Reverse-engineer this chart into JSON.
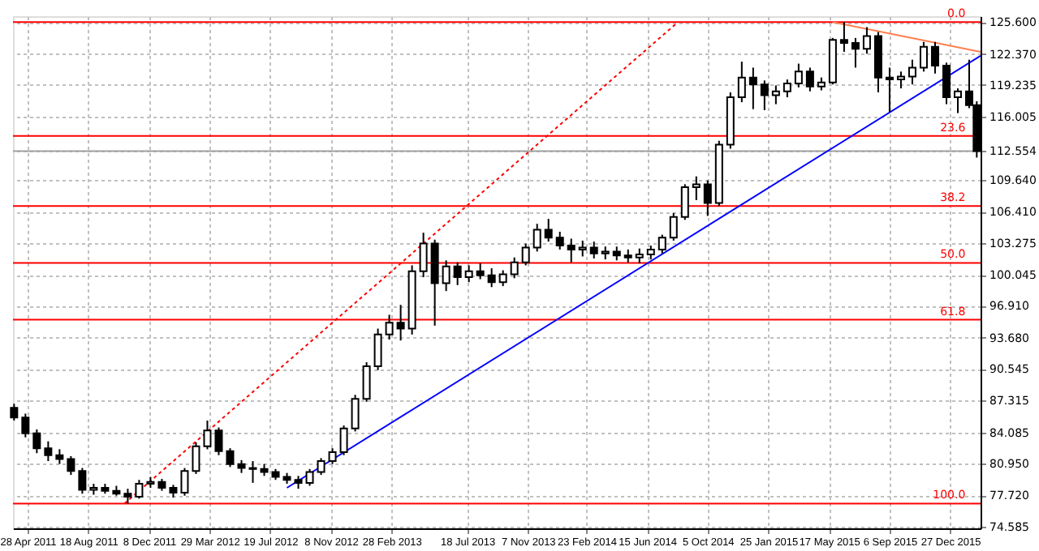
{
  "chart_data": {
    "type": "candlestick",
    "xlim": [
      "2011-04-01",
      "2016-02-21"
    ],
    "xticks": [
      {
        "value": "2011-04-28",
        "label": "28 Apr 2011"
      },
      {
        "value": "2011-08-18",
        "label": "18 Aug 2011"
      },
      {
        "value": "2011-12-08",
        "label": "8 Dec 2011"
      },
      {
        "value": "2012-03-29",
        "label": "29 Mar 2012"
      },
      {
        "value": "2012-07-19",
        "label": "19 Jul 2012"
      },
      {
        "value": "2012-11-08",
        "label": "8 Nov 2012"
      },
      {
        "value": "2013-02-28",
        "label": "28 Feb 2013"
      },
      {
        "value": "2013-07-18",
        "label": "18 Jul 2013"
      },
      {
        "value": "2013-11-07",
        "label": "7 Nov 2013"
      },
      {
        "value": "2014-02-23",
        "label": "23 Feb 2014"
      },
      {
        "value": "2014-06-15",
        "label": "15 Jun 2014"
      },
      {
        "value": "2014-10-05",
        "label": "5 Oct 2014"
      },
      {
        "value": "2015-01-25",
        "label": "25 Jan 2015"
      },
      {
        "value": "2015-05-17",
        "label": "17 May 2015"
      },
      {
        "value": "2015-09-06",
        "label": "6 Sep 2015"
      },
      {
        "value": "2015-12-27",
        "label": "27 Dec 2015"
      }
    ],
    "ylim": [
      74.4,
      126.2
    ],
    "yticks": [
      {
        "value": 125.6,
        "label": "125.600"
      },
      {
        "value": 122.37,
        "label": "122.370"
      },
      {
        "value": 119.235,
        "label": "119.235"
      },
      {
        "value": 116.005,
        "label": "116.005"
      },
      {
        "value": 112.554,
        "label": "112.554"
      },
      {
        "value": 109.64,
        "label": "109.640"
      },
      {
        "value": 106.41,
        "label": "106.410"
      },
      {
        "value": 103.275,
        "label": "103.275"
      },
      {
        "value": 100.045,
        "label": "100.045"
      },
      {
        "value": 96.91,
        "label": "96.910"
      },
      {
        "value": 93.68,
        "label": "93.680"
      },
      {
        "value": 90.545,
        "label": "90.545"
      },
      {
        "value": 87.315,
        "label": "87.315"
      },
      {
        "value": 84.085,
        "label": "84.085"
      },
      {
        "value": 80.95,
        "label": "80.950"
      },
      {
        "value": 77.72,
        "label": "77.720"
      },
      {
        "value": 74.585,
        "label": "74.585"
      }
    ],
    "grid": true,
    "ref_lines": [
      {
        "axis": "y",
        "value": 125.6,
        "color": "#ff0000"
      },
      {
        "axis": "y",
        "value": 114.1,
        "color": "#ff0000"
      },
      {
        "axis": "y",
        "value": 107.0,
        "color": "#ff0000"
      },
      {
        "axis": "y",
        "value": 101.25,
        "color": "#ff0000"
      },
      {
        "axis": "y",
        "value": 95.5,
        "color": "#ff0000"
      },
      {
        "axis": "y",
        "value": 76.9,
        "color": "#ff0000"
      },
      {
        "axis": "y",
        "value": 112.554,
        "color": "#a0a0a0"
      }
    ],
    "annotations": [
      {
        "text": "0.0",
        "x": "2016-01-24",
        "y": 125.6
      },
      {
        "text": "23.6",
        "x": "2016-01-24",
        "y": 114.1
      },
      {
        "text": "38.2",
        "x": "2016-01-24",
        "y": 107.0
      },
      {
        "text": "50.0",
        "x": "2016-01-24",
        "y": 101.25
      },
      {
        "text": "61.8",
        "x": "2016-01-24",
        "y": 95.5
      },
      {
        "text": "100.0",
        "x": "2016-01-24",
        "y": 76.9
      }
    ],
    "series": [
      {
        "type": "candlestick",
        "color": "#000000",
        "x": [
          "2011-04-03",
          "2011-04-24",
          "2011-05-15",
          "2011-06-05",
          "2011-06-26",
          "2011-07-17",
          "2011-08-07",
          "2011-08-28",
          "2011-09-18",
          "2011-10-09",
          "2011-10-30",
          "2011-11-20",
          "2011-12-11",
          "2012-01-01",
          "2012-01-22",
          "2012-02-12",
          "2012-03-04",
          "2012-03-25",
          "2012-04-15",
          "2012-05-06",
          "2012-05-27",
          "2012-06-17",
          "2012-07-08",
          "2012-07-29",
          "2012-08-19",
          "2012-09-09",
          "2012-09-30",
          "2012-10-21",
          "2012-11-11",
          "2012-12-02",
          "2012-12-23",
          "2013-01-13",
          "2013-02-03",
          "2013-02-24",
          "2013-03-17",
          "2013-04-07",
          "2013-04-28",
          "2013-05-19",
          "2013-06-09",
          "2013-06-30",
          "2013-07-21",
          "2013-08-11",
          "2013-09-01",
          "2013-09-22",
          "2013-10-13",
          "2013-11-03",
          "2013-11-24",
          "2013-12-15",
          "2014-01-05",
          "2014-01-26",
          "2014-02-16",
          "2014-03-09",
          "2014-03-30",
          "2014-04-20",
          "2014-05-11",
          "2014-06-01",
          "2014-06-22",
          "2014-07-13",
          "2014-08-03",
          "2014-08-24",
          "2014-09-14",
          "2014-10-05",
          "2014-10-26",
          "2014-11-16",
          "2014-12-07",
          "2014-12-28",
          "2015-01-18",
          "2015-02-08",
          "2015-03-01",
          "2015-03-22",
          "2015-04-12",
          "2015-05-03",
          "2015-05-24",
          "2015-06-14",
          "2015-07-05",
          "2015-07-26",
          "2015-08-16",
          "2015-09-06",
          "2015-09-27",
          "2015-10-18",
          "2015-11-08",
          "2015-11-29",
          "2015-12-20",
          "2016-01-10",
          "2016-01-31",
          "2016-02-14"
        ],
        "ohlc": [
          [
            86.6,
            87.0,
            85.3,
            85.6
          ],
          [
            85.6,
            86.0,
            83.6,
            84.0
          ],
          [
            84.0,
            84.4,
            82.0,
            82.5
          ],
          [
            82.5,
            83.2,
            81.2,
            81.8
          ],
          [
            81.8,
            82.4,
            80.9,
            81.4
          ],
          [
            81.4,
            81.7,
            79.8,
            80.2
          ],
          [
            80.2,
            80.5,
            77.9,
            78.3
          ],
          [
            78.3,
            78.9,
            77.8,
            78.5
          ],
          [
            78.5,
            78.9,
            77.9,
            78.2
          ],
          [
            78.2,
            78.7,
            77.7,
            77.9
          ],
          [
            77.9,
            78.4,
            76.9,
            77.6
          ],
          [
            77.6,
            79.3,
            77.4,
            78.9
          ],
          [
            78.9,
            79.6,
            78.5,
            79.1
          ],
          [
            79.1,
            79.4,
            78.2,
            78.5
          ],
          [
            78.5,
            78.8,
            77.5,
            78.0
          ],
          [
            78.0,
            80.5,
            77.7,
            80.2
          ],
          [
            80.2,
            83.1,
            79.9,
            82.7
          ],
          [
            82.7,
            85.3,
            82.4,
            84.3
          ],
          [
            84.3,
            84.6,
            81.8,
            82.2
          ],
          [
            82.2,
            82.5,
            80.6,
            80.9
          ],
          [
            80.9,
            81.3,
            80.0,
            80.5
          ],
          [
            80.5,
            81.2,
            79.0,
            80.4
          ],
          [
            80.4,
            80.9,
            79.7,
            80.1
          ],
          [
            80.1,
            80.4,
            79.3,
            79.6
          ],
          [
            79.6,
            80.0,
            78.9,
            79.3
          ],
          [
            79.3,
            79.7,
            78.4,
            79.0
          ],
          [
            79.0,
            80.4,
            78.7,
            80.1
          ],
          [
            80.1,
            81.5,
            79.8,
            81.2
          ],
          [
            81.2,
            82.5,
            80.9,
            82.1
          ],
          [
            82.1,
            84.8,
            81.8,
            84.5
          ],
          [
            84.5,
            87.9,
            84.2,
            87.5
          ],
          [
            87.5,
            91.2,
            87.2,
            90.8
          ],
          [
            90.8,
            94.6,
            90.4,
            94.0
          ],
          [
            94.0,
            96.0,
            93.5,
            95.2
          ],
          [
            95.2,
            97.0,
            93.4,
            94.6
          ],
          [
            94.6,
            101.0,
            94.0,
            100.4
          ],
          [
            100.4,
            104.3,
            99.8,
            103.2
          ],
          [
            103.2,
            103.6,
            94.9,
            99.2
          ],
          [
            99.2,
            101.5,
            98.4,
            100.9
          ],
          [
            100.9,
            101.3,
            99.0,
            99.8
          ],
          [
            99.8,
            101.0,
            99.3,
            100.4
          ],
          [
            100.4,
            101.2,
            99.6,
            100.0
          ],
          [
            100.0,
            100.7,
            98.8,
            99.3
          ],
          [
            99.3,
            100.5,
            98.9,
            100.1
          ],
          [
            100.1,
            101.8,
            99.7,
            101.3
          ],
          [
            101.3,
            103.2,
            101.0,
            102.8
          ],
          [
            102.8,
            105.2,
            102.4,
            104.6
          ],
          [
            104.6,
            105.7,
            103.4,
            103.8
          ],
          [
            103.8,
            104.4,
            102.6,
            103.0
          ],
          [
            103.0,
            103.7,
            101.3,
            102.6
          ],
          [
            102.6,
            103.5,
            101.9,
            102.8
          ],
          [
            102.8,
            103.4,
            101.7,
            102.2
          ],
          [
            102.2,
            102.9,
            101.6,
            102.4
          ],
          [
            102.4,
            102.9,
            101.5,
            102.0
          ],
          [
            102.0,
            102.6,
            101.3,
            101.8
          ],
          [
            101.8,
            102.7,
            101.2,
            102.1
          ],
          [
            102.1,
            103.0,
            101.6,
            102.6
          ],
          [
            102.6,
            104.1,
            102.2,
            103.8
          ],
          [
            103.8,
            106.3,
            103.5,
            105.9
          ],
          [
            105.9,
            109.2,
            105.6,
            108.9
          ],
          [
            108.9,
            110.0,
            107.6,
            109.2
          ],
          [
            109.2,
            109.6,
            106.0,
            107.3
          ],
          [
            107.3,
            113.6,
            107.0,
            113.2
          ],
          [
            113.2,
            118.5,
            112.8,
            118.0
          ],
          [
            118.0,
            121.6,
            117.5,
            120.0
          ],
          [
            120.0,
            121.0,
            116.8,
            119.3
          ],
          [
            119.3,
            119.7,
            116.7,
            118.2
          ],
          [
            118.2,
            119.2,
            117.3,
            118.6
          ],
          [
            118.6,
            119.8,
            118.0,
            119.4
          ],
          [
            119.4,
            121.4,
            119.0,
            120.6
          ],
          [
            120.6,
            121.0,
            118.6,
            119.1
          ],
          [
            119.1,
            120.0,
            118.7,
            119.5
          ],
          [
            119.5,
            124.0,
            119.3,
            123.8
          ],
          [
            123.8,
            125.6,
            122.6,
            123.5
          ],
          [
            123.5,
            124.0,
            121.0,
            122.9
          ],
          [
            122.9,
            125.1,
            122.4,
            124.2
          ],
          [
            124.2,
            124.6,
            118.5,
            120.0
          ],
          [
            120.0,
            121.0,
            116.5,
            119.8
          ],
          [
            119.8,
            120.6,
            118.9,
            120.1
          ],
          [
            120.1,
            121.8,
            119.3,
            121.0
          ],
          [
            121.0,
            123.6,
            120.6,
            123.1
          ],
          [
            123.1,
            123.6,
            120.4,
            121.2
          ],
          [
            121.2,
            121.5,
            117.3,
            118.0
          ],
          [
            118.0,
            118.9,
            116.4,
            118.6
          ],
          [
            118.6,
            121.8,
            116.9,
            117.2
          ],
          [
            117.2,
            117.6,
            111.9,
            112.554
          ]
        ]
      },
      {
        "type": "line",
        "color": "#0000ff",
        "line_style": "solid",
        "x": [
          "2012-08-19",
          "2016-02-21"
        ],
        "values": [
          78.5,
          122.2
        ]
      },
      {
        "type": "line",
        "color": "#ff7f50",
        "line_style": "solid",
        "x": [
          "2015-05-24",
          "2016-02-21"
        ],
        "values": [
          125.6,
          122.6
        ]
      },
      {
        "type": "line",
        "color": "#ff0000",
        "line_style": "dotted",
        "x": [
          "2011-10-24",
          "2014-08-11"
        ],
        "values": [
          76.9,
          125.6
        ]
      }
    ]
  }
}
